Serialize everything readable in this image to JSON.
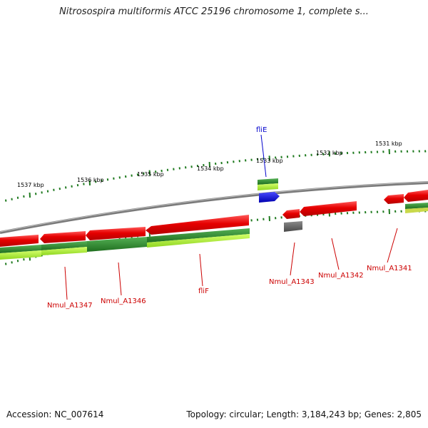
{
  "title": "Nitrosospira multiformis ATCC 25196 chromosome 1, complete s...",
  "footer": {
    "accession": "Accession: NC_007614",
    "summary": "Topology: circular; Length: 3,184,243 bp; Genes: 2,805"
  },
  "colors": {
    "forward_gene": "#e60000",
    "reverse_gene": "#2e8b2e",
    "reverse_gene_light": "#9be62e",
    "highlight_gene": "#0000e6",
    "other_gene": "#666666",
    "backbone": "#8c8c8c",
    "tick": "#1f7a1f"
  },
  "scale_labels": [
    "1537 kbp",
    "1536 kbp",
    "1535 kbp",
    "1534 kbp",
    "1533 kbp",
    "1532 kbp",
    "1531 kbp"
  ],
  "gene_labels_top": [
    {
      "label": "fliE",
      "color": "blue"
    }
  ],
  "gene_labels_bottom": [
    {
      "label": "Nmul_A1347"
    },
    {
      "label": "Nmul_A1346"
    },
    {
      "label": "fliF"
    },
    {
      "label": "Nmul_A1343"
    },
    {
      "label": "Nmul_A1342"
    },
    {
      "label": "Nmul_A1341"
    }
  ]
}
